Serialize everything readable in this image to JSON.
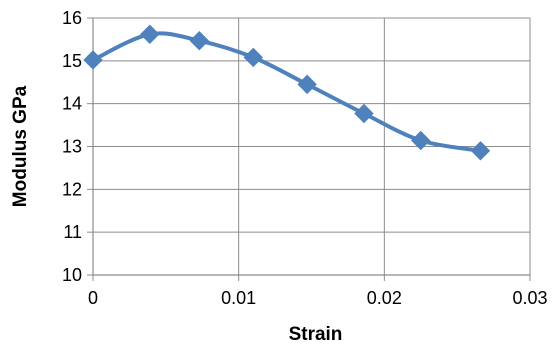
{
  "chart_data": {
    "type": "line",
    "xlabel": "Strain",
    "ylabel": "Modulus GPa",
    "xlim": [
      0,
      0.03
    ],
    "ylim": [
      10,
      16
    ],
    "x_ticks": [
      "0",
      "0.01",
      "0.02",
      "0.03"
    ],
    "y_ticks": [
      "10",
      "11",
      "12",
      "13",
      "14",
      "15",
      "16"
    ],
    "grid": true,
    "legend": "none",
    "series": [
      {
        "x": [
          0,
          0.0039,
          0.0073,
          0.011,
          0.0147,
          0.0186,
          0.0225,
          0.0266
        ],
        "y": [
          15.02,
          15.62,
          15.47,
          15.08,
          14.45,
          13.77,
          13.14,
          12.9
        ],
        "color": "#4f81bd",
        "marker": "diamond",
        "smooth": true
      }
    ]
  }
}
